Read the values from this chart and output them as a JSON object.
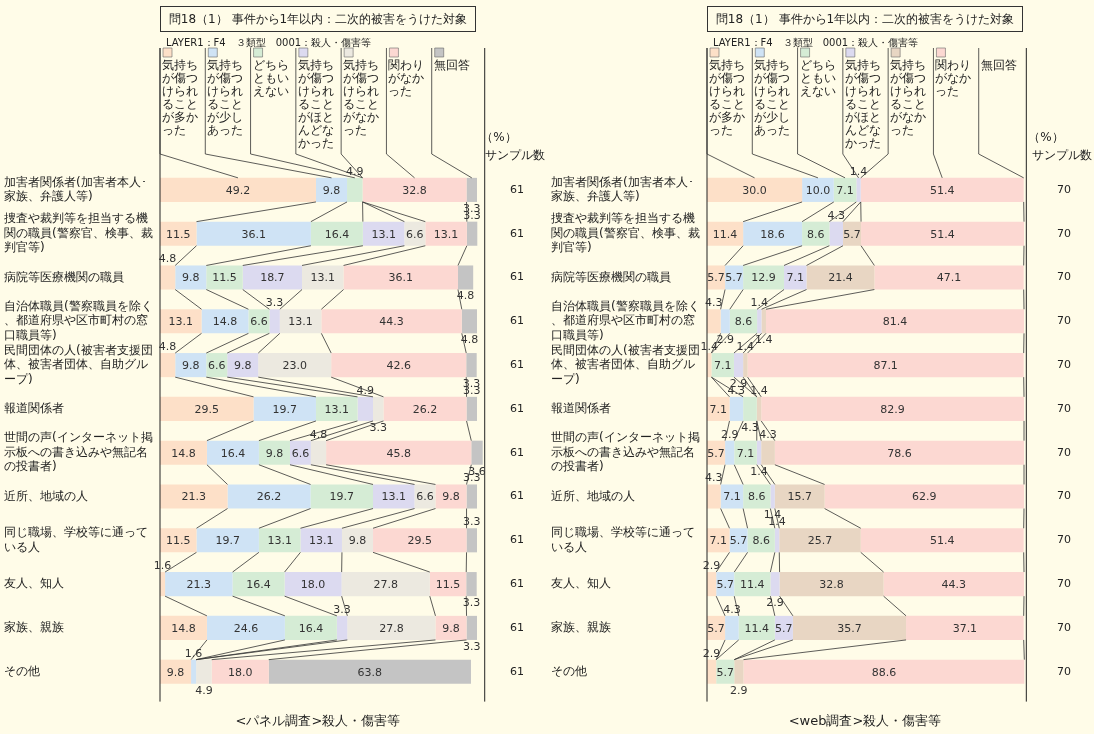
{
  "chart_data": [
    {
      "type": "bar",
      "orientation": "horizontal",
      "stacked": true,
      "legend": "top",
      "tick_labels": "y",
      "title": "問18（1） 事件から1年以内：二次的被害をうけた対象",
      "subtitle": "LAYER1：F4　３類型　0001：殺人・傷害等",
      "xlabel": "<パネル調査>殺人・傷害等",
      "categories": [
        "加害者関係者(加害者本人･家族、弁護人等)",
        "捜査や裁判等を担当する機関の職員(警察官、検事、裁判官等)",
        "病院等医療機関の職員",
        "自治体職員(警察職員を除く、都道府県や区市町村の窓口職員等)",
        "民間団体の人(被害者支援団体、被害者団体、自助グループ)",
        "報道関係者",
        "世間の声(インターネット掲示板への書き込みや無記名の投書者)",
        "近所、地域の人",
        "同じ職場、学校等に通っている人",
        "友人、知人",
        "家族、親族",
        "その他"
      ],
      "series": [
        {
          "name": "気持ちが傷つけられることが多かった",
          "color": "#fde0c8",
          "values": [
            49.2,
            11.5,
            4.8,
            13.1,
            4.8,
            29.5,
            14.8,
            21.3,
            11.5,
            1.6,
            14.8,
            9.8
          ],
          "value_labels": [
            "49.2",
            "11.5",
            "4.8",
            "13.1",
            "4.8",
            "29.5",
            "14.8",
            "21.3",
            "11.5",
            "1.6",
            "14.8",
            "9.8"
          ]
        },
        {
          "name": "気持ちが傷つけられることが少しあった",
          "color": "#cfe3f5",
          "values": [
            9.8,
            36.1,
            9.8,
            14.8,
            9.8,
            19.7,
            16.4,
            26.2,
            19.7,
            21.3,
            24.6,
            1.6
          ],
          "value_labels": [
            "9.8",
            "36.1",
            "9.8",
            "14.8",
            "9.8",
            "19.7",
            "16.4",
            "26.2",
            "19.7",
            "21.3",
            "24.6",
            "1.6"
          ]
        },
        {
          "name": "どちらともいえない",
          "color": "#d5ecd5",
          "values": [
            4.9,
            16.4,
            11.5,
            6.6,
            6.6,
            13.1,
            9.8,
            19.7,
            13.1,
            16.4,
            16.4,
            null
          ],
          "value_labels": [
            "4.9",
            "16.4",
            "11.5",
            "6.6",
            "6.6",
            "13.1",
            "9.8",
            "19.7",
            "13.1",
            "16.4",
            "16.4",
            null
          ]
        },
        {
          "name": "気持ちが傷つけられることがほとんどなかった",
          "color": "#dcdaf0",
          "values": [
            null,
            13.1,
            18.7,
            3.3,
            9.8,
            4.9,
            6.6,
            13.1,
            13.1,
            18.0,
            3.3,
            null
          ],
          "value_labels": [
            null,
            "13.1",
            "18.7",
            "3.3",
            "9.8",
            "4.9",
            "6.6",
            "13.1",
            "13.1",
            "18.0",
            "3.3",
            null
          ]
        },
        {
          "name": "気持ちが傷つけられることがなかった",
          "color": "#ece9e0",
          "values": [
            null,
            6.6,
            13.1,
            13.1,
            23.0,
            3.3,
            4.8,
            6.6,
            9.8,
            27.8,
            27.8,
            4.9
          ],
          "value_labels": [
            null,
            "6.6",
            "13.1",
            "13.1",
            "23.0",
            "3.3",
            "4.8",
            "6.6",
            "9.8",
            "27.8",
            "27.8",
            "4.9"
          ]
        },
        {
          "name": "関わりがなかった",
          "color": "#fcd8d2",
          "values": [
            32.8,
            13.1,
            36.1,
            44.3,
            42.6,
            26.2,
            45.8,
            9.8,
            29.5,
            11.5,
            9.8,
            18.0
          ],
          "value_labels": [
            "32.8",
            "13.1",
            "36.1",
            "44.3",
            "42.6",
            "26.2",
            "45.8",
            "9.8",
            "29.5",
            "11.5",
            "9.8",
            "18.0"
          ]
        },
        {
          "name": "無回答",
          "color": "#c4c4c4",
          "values": [
            3.3,
            3.3,
            4.8,
            4.8,
            3.3,
            3.3,
            3.6,
            3.3,
            3.3,
            3.3,
            3.3,
            63.8
          ],
          "value_labels": [
            "3.3",
            "3.3",
            "4.8",
            "4.8",
            "3.3",
            "3.3",
            "3.6",
            "3.3",
            "3.3",
            "3.3",
            "3.3",
            "63.8"
          ]
        }
      ],
      "annotations": [
        "（%）",
        "サンプル数",
        "61",
        "61",
        "61",
        "61",
        "61",
        "61",
        "61",
        "61",
        "61",
        "61",
        "61",
        "61"
      ]
    },
    {
      "type": "bar",
      "orientation": "horizontal",
      "stacked": true,
      "legend": "top",
      "tick_labels": "y",
      "title": "問18（1） 事件から1年以内：二次的被害をうけた対象",
      "subtitle": "LAYER1：F4　３類型　0001：殺人・傷害等",
      "xlabel": "<web調査>殺人・傷害等",
      "categories": [
        "加害者関係者(加害者本人･家族、弁護人等)",
        "捜査や裁判等を担当する機関の職員(警察官、検事、裁判官等)",
        "病院等医療機関の職員",
        "自治体職員(警察職員を除く、都道府県や区市町村の窓口職員等)",
        "民間団体の人(被害者支援団体、被害者団体、自助グループ)",
        "報道関係者",
        "世間の声(インターネット掲示板への書き込みや無記名の投書者)",
        "近所、地域の人",
        "同じ職場、学校等に通っている人",
        "友人、知人",
        "家族、親族",
        "その他"
      ],
      "series": [
        {
          "name": "気持ちが傷つけられることが多かった",
          "color": "#fde0c8",
          "values": [
            30.0,
            11.4,
            5.7,
            4.3,
            1.4,
            7.1,
            5.7,
            4.3,
            7.1,
            2.9,
            5.7,
            2.9
          ],
          "value_labels": [
            "30.0",
            "11.4",
            "5.7",
            "4.3",
            "1.4",
            "7.1",
            "5.7",
            "4.3",
            "7.1",
            "2.9",
            "5.7",
            "2.9"
          ]
        },
        {
          "name": "気持ちが傷つけられることが少しあった",
          "color": "#cfe3f5",
          "values": [
            10.0,
            18.6,
            5.7,
            2.9,
            null,
            4.3,
            2.9,
            7.1,
            5.7,
            5.7,
            4.3,
            null
          ],
          "value_labels": [
            "10.0",
            "18.6",
            "5.7",
            "2.9",
            null,
            "4.3",
            "2.9",
            "7.1",
            "5.7",
            "5.7",
            "4.3",
            null
          ]
        },
        {
          "name": "どちらともいえない",
          "color": "#d5ecd5",
          "values": [
            7.1,
            8.6,
            12.9,
            8.6,
            7.1,
            4.3,
            7.1,
            8.6,
            8.6,
            11.4,
            11.4,
            5.7
          ],
          "value_labels": [
            "7.1",
            "8.6",
            "12.9",
            "8.6",
            "7.1",
            "4.3",
            "7.1",
            "8.6",
            "8.6",
            "11.4",
            "11.4",
            "5.7"
          ]
        },
        {
          "name": "気持ちが傷つけられることがほとんどなかった",
          "color": "#dcdaf0",
          "values": [
            1.4,
            4.3,
            7.1,
            1.4,
            2.9,
            null,
            1.4,
            1.4,
            1.4,
            2.9,
            5.7,
            null
          ],
          "value_labels": [
            "1.4",
            "4.3",
            "7.1",
            "1.4",
            "2.9",
            null,
            "1.4",
            "1.4",
            "1.4",
            "2.9",
            "5.7",
            null
          ]
        },
        {
          "name": "気持ちが傷つけられることがなかった",
          "color": "#e8d6c3",
          "values": [
            null,
            5.7,
            21.4,
            1.4,
            1.4,
            1.4,
            4.3,
            15.7,
            25.7,
            32.8,
            35.7,
            2.9
          ],
          "value_labels": [
            null,
            "5.7",
            "21.4",
            "1.4",
            "1.4",
            "1.4",
            "4.3",
            "15.7",
            "25.7",
            "32.8",
            "35.7",
            "2.9"
          ]
        },
        {
          "name": "関わりがなかった",
          "color": "#fcd8d2",
          "values": [
            51.4,
            51.4,
            47.1,
            81.4,
            87.1,
            82.9,
            78.6,
            62.9,
            51.4,
            44.3,
            37.1,
            88.6
          ],
          "value_labels": [
            "51.4",
            "51.4",
            "47.1",
            "81.4",
            "87.1",
            "82.9",
            "78.6",
            "62.9",
            "51.4",
            "44.3",
            "37.1",
            "88.6"
          ]
        },
        {
          "name": "無回答",
          "values": [
            null,
            null,
            null,
            null,
            null,
            null,
            null,
            null,
            null,
            null,
            null,
            null
          ]
        }
      ],
      "annotations": [
        "（%）",
        "サンプル数",
        "70",
        "70",
        "70",
        "70",
        "70",
        "70",
        "70",
        "70",
        "70",
        "70",
        "70",
        "70"
      ]
    }
  ]
}
